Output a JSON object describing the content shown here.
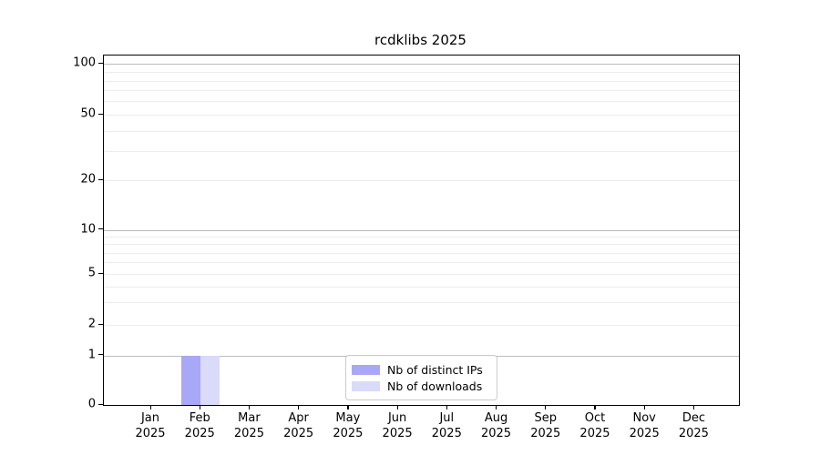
{
  "figure": {
    "title": "rcdklibs 2025"
  },
  "chart_data": {
    "type": "bar",
    "title": "rcdklibs 2025",
    "x": {
      "months": [
        "Jan",
        "Feb",
        "Mar",
        "Apr",
        "May",
        "Jun",
        "Jul",
        "Aug",
        "Sep",
        "Oct",
        "Nov",
        "Dec"
      ],
      "year": "2025"
    },
    "categories": [
      "Jan 2025",
      "Feb 2025",
      "Mar 2025",
      "Apr 2025",
      "May 2025",
      "Jun 2025",
      "Jul 2025",
      "Aug 2025",
      "Sep 2025",
      "Oct 2025",
      "Nov 2025",
      "Dec 2025"
    ],
    "series": [
      {
        "name": "Nb of distinct IPs",
        "color": "#a8a8f6",
        "values": [
          0,
          1,
          0,
          0,
          0,
          0,
          0,
          0,
          0,
          0,
          0,
          0
        ]
      },
      {
        "name": "Nb of downloads",
        "color": "#dadaf9",
        "values": [
          0,
          1,
          0,
          0,
          0,
          0,
          0,
          0,
          0,
          0,
          0,
          0
        ]
      }
    ],
    "yscale": "log (0 shown at baseline)",
    "ylim": [
      0,
      110
    ],
    "y_tick_values": [
      0,
      1,
      2,
      5,
      10,
      20,
      50,
      100
    ],
    "y_major_grid_values": [
      1,
      10,
      100
    ],
    "y_minor_grid_values": [
      2,
      3,
      4,
      5,
      6,
      7,
      8,
      9,
      20,
      30,
      40,
      50,
      60,
      70,
      80,
      90
    ],
    "grid": "horizontal only",
    "legend_position": "lower center",
    "colors": {
      "axis": "#000000",
      "grid_major": "#bbbbbb",
      "grid_minor": "#ececec",
      "bar_distinct_ips": "#a8a8f6",
      "bar_downloads": "#dadaf9"
    }
  }
}
